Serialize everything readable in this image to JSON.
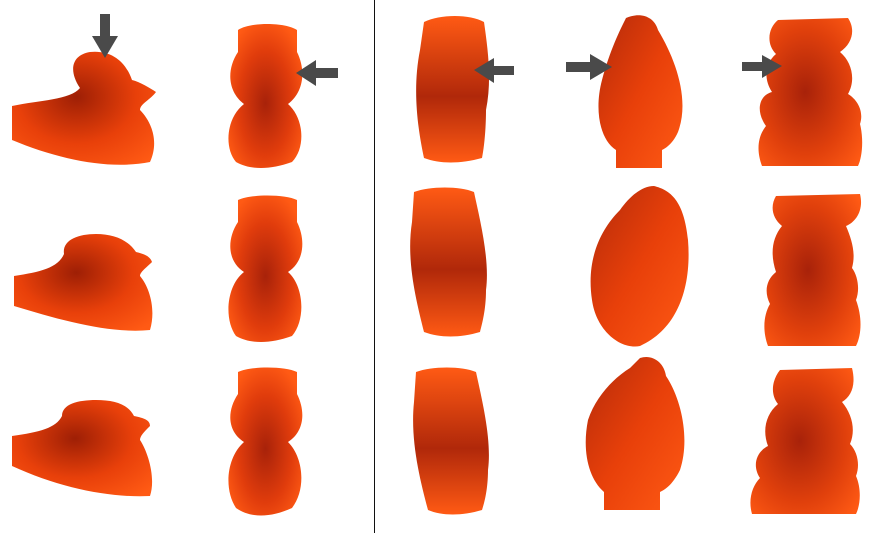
{
  "figure": {
    "columns": [
      {
        "id": "rubber-duck",
        "rows": 3,
        "marked_row": 1,
        "arrow_direction": "down"
      },
      {
        "id": "vase",
        "rows": 3,
        "marked_row": 1,
        "arrow_direction": "left"
      },
      {
        "id": "tall-bottle",
        "rows": 3,
        "marked_row": 1,
        "arrow_direction": "left"
      },
      {
        "id": "rounded-bottle",
        "rows": 3,
        "marked_row": 1,
        "arrow_direction": "right"
      },
      {
        "id": "teddy-bear",
        "rows": 3,
        "marked_row": 1,
        "arrow_direction": "right"
      }
    ],
    "colors": {
      "object_light": "#ff5a14",
      "object_mid": "#e8400a",
      "object_dark": "#9e1f05",
      "arrow": "#4a4a4a",
      "divider": "#111111",
      "background": "#ffffff"
    }
  }
}
